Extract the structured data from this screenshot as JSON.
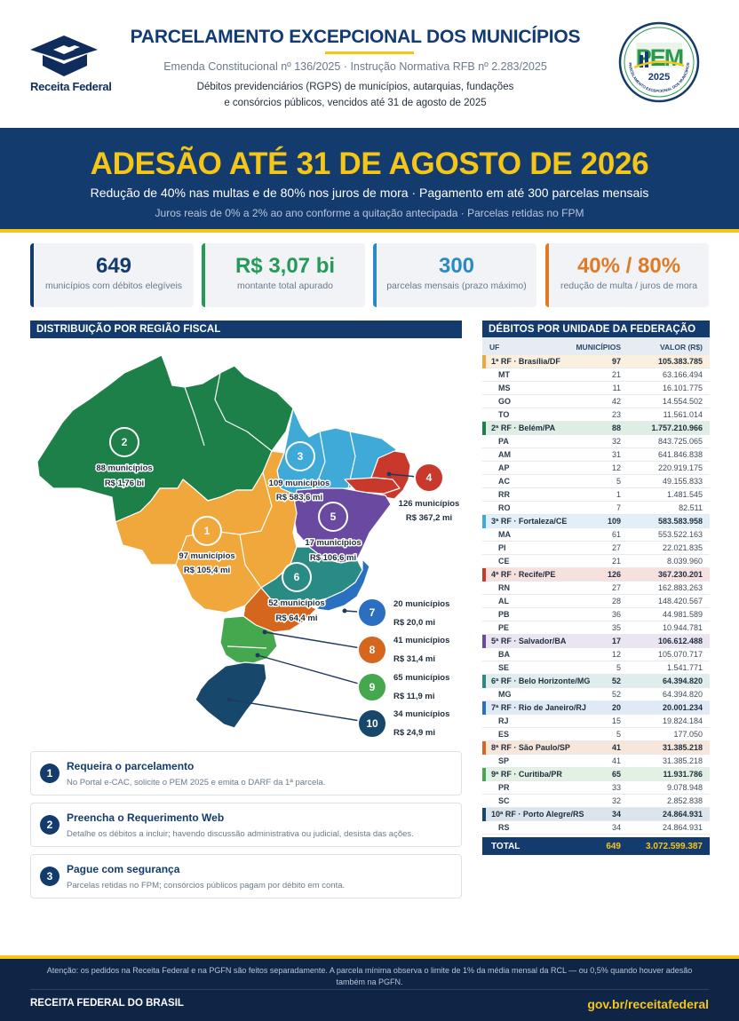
{
  "header": {
    "brand": "Receita Federal",
    "title": "PARCELAMENTO EXCEPCIONAL DOS MUNICÍPIOS",
    "subtitle": "Emenda Constitucional nº 136/2025  ·  Instrução Normativa RFB nº 2.283/2025",
    "description_line1": "Débitos previdenciários (RGPS) de municípios, autarquias, fundações",
    "description_line2": "e consórcios públicos, vencidos até 31 de agosto de 2025",
    "pem_logo": {
      "letters": "PEM",
      "year": "2025",
      "ring_text": "PARCELAMENTO EXCEPCIONAL DOS MUNICÍPIOS"
    }
  },
  "banner": {
    "title": "ADESÃO ATÉ 31 DE AGOSTO DE 2026",
    "subtitle": "Redução de 40% nas multas e de 80% nos juros de mora  ·  Pagamento em até 300 parcelas mensais",
    "note": "Juros reais de 0% a 2% ao ano conforme a quitação antecipada  ·  Parcelas retidas no FPM"
  },
  "kpis": [
    {
      "value": "649",
      "label": "municípios com débitos elegíveis",
      "color": "#133b6e"
    },
    {
      "value": "R$ 3,07 bi",
      "label": "montante total apurado",
      "color": "#239b56"
    },
    {
      "value": "300",
      "label": "parcelas mensais (prazo máximo)",
      "color": "#2a8ac4"
    },
    {
      "value": "40% / 80%",
      "label": "redução de multa / juros de mora",
      "color": "#e07b25"
    }
  ],
  "map": {
    "title": "DISTRIBUIÇÃO POR REGIÃO FISCAL",
    "regions": [
      {
        "num": "1",
        "municipios": "97 municípios",
        "valor": "R$ 105,4 mi",
        "color": "#f0a83c"
      },
      {
        "num": "2",
        "municipios": "88 municípios",
        "valor": "R$ 1,76 bi",
        "color": "#1d8049"
      },
      {
        "num": "3",
        "municipios": "109 municípios",
        "valor": "R$ 583,6 mi",
        "color": "#3fa9d8"
      },
      {
        "num": "4",
        "municipios": "126 municípios",
        "valor": "R$ 367,2 mi",
        "color": "#c9392b"
      },
      {
        "num": "5",
        "municipios": "17 municípios",
        "valor": "R$ 106,6 mi",
        "color": "#6a4aa0"
      },
      {
        "num": "6",
        "municipios": "52 municípios",
        "valor": "R$ 64,4 mi",
        "color": "#2a8a84"
      },
      {
        "num": "7",
        "municipios": "20 municípios",
        "valor": "R$ 20,0 mi",
        "color": "#2a6fc0"
      },
      {
        "num": "8",
        "municipios": "41 municípios",
        "valor": "R$ 31,4 mi",
        "color": "#d4661e"
      },
      {
        "num": "9",
        "municipios": "65 municípios",
        "valor": "R$ 11,9 mi",
        "color": "#46a84e"
      },
      {
        "num": "10",
        "municipios": "34 municípios",
        "valor": "R$ 24,9 mi",
        "color": "#17476b"
      }
    ]
  },
  "steps": [
    {
      "num": "1",
      "title": "Requeira o parcelamento",
      "desc": "No Portal e-CAC, solicite o PEM 2025 e emita o DARF da 1ª parcela."
    },
    {
      "num": "2",
      "title": "Preencha o Requerimento Web",
      "desc": "Detalhe os débitos a incluir; havendo discussão administrativa ou judicial, desista das ações."
    },
    {
      "num": "3",
      "title": "Pague com segurança",
      "desc": "Parcelas retidas no FPM; consórcios públicos pagam por débito em conta."
    }
  ],
  "table": {
    "title": "DÉBITOS POR UNIDADE DA FEDERAÇÃO",
    "columns": [
      "UF",
      "MUNICÍPIOS",
      "VALOR (R$)"
    ],
    "groups": [
      {
        "label": "1ª RF · Brasília/DF",
        "count": "97",
        "value": "105.383.785",
        "color": "#f0a83c",
        "bg": "#fbefde",
        "rows": [
          [
            "MT",
            "21",
            "63.166.494"
          ],
          [
            "MS",
            "11",
            "16.101.775"
          ],
          [
            "GO",
            "42",
            "14.554.502"
          ],
          [
            "TO",
            "23",
            "11.561.014"
          ]
        ]
      },
      {
        "label": "2ª RF · Belém/PA",
        "count": "88",
        "value": "1.757.210.966",
        "color": "#1d8049",
        "bg": "#dfeee4",
        "rows": [
          [
            "PA",
            "32",
            "843.725.065"
          ],
          [
            "AM",
            "31",
            "641.846.838"
          ],
          [
            "AP",
            "12",
            "220.919.175"
          ],
          [
            "AC",
            "5",
            "49.155.833"
          ],
          [
            "RR",
            "1",
            "1.481.545"
          ],
          [
            "RO",
            "7",
            "82.511"
          ]
        ]
      },
      {
        "label": "3ª RF · Fortaleza/CE",
        "count": "109",
        "value": "583.583.958",
        "color": "#3fa9d8",
        "bg": "#e1f0f8",
        "rows": [
          [
            "MA",
            "61",
            "553.522.163"
          ],
          [
            "PI",
            "27",
            "22.021.835"
          ],
          [
            "CE",
            "21",
            "8.039.960"
          ]
        ]
      },
      {
        "label": "4ª RF · Recife/PE",
        "count": "126",
        "value": "367.230.201",
        "color": "#c9392b",
        "bg": "#f6e1df",
        "rows": [
          [
            "RN",
            "27",
            "162.883.263"
          ],
          [
            "AL",
            "28",
            "148.420.567"
          ],
          [
            "PB",
            "36",
            "44.981.589"
          ],
          [
            "PE",
            "35",
            "10.944.781"
          ]
        ]
      },
      {
        "label": "5ª RF · Salvador/BA",
        "count": "17",
        "value": "106.612.488",
        "color": "#6a4aa0",
        "bg": "#ebe5f2",
        "rows": [
          [
            "BA",
            "12",
            "105.070.717"
          ],
          [
            "SE",
            "5",
            "1.541.771"
          ]
        ]
      },
      {
        "label": "6ª RF · Belo Horizonte/MG",
        "count": "52",
        "value": "64.394.820",
        "color": "#2a8a84",
        "bg": "#dfeeed",
        "rows": [
          [
            "MG",
            "52",
            "64.394.820"
          ]
        ]
      },
      {
        "label": "7ª RF · Rio de Janeiro/RJ",
        "count": "20",
        "value": "20.001.234",
        "color": "#2a6fc0",
        "bg": "#e0eaf6",
        "rows": [
          [
            "RJ",
            "15",
            "19.824.184"
          ],
          [
            "ES",
            "5",
            "177.050"
          ]
        ]
      },
      {
        "label": "8ª RF · São Paulo/SP",
        "count": "41",
        "value": "31.385.218",
        "color": "#d4661e",
        "bg": "#f8e6da",
        "rows": [
          [
            "SP",
            "41",
            "31.385.218"
          ]
        ]
      },
      {
        "label": "9ª RF · Curitiba/PR",
        "count": "65",
        "value": "11.931.786",
        "color": "#46a84e",
        "bg": "#e3f1e4",
        "rows": [
          [
            "PR",
            "33",
            "9.078.948"
          ],
          [
            "SC",
            "32",
            "2.852.838"
          ]
        ]
      },
      {
        "label": "10ª RF · Porto Alegre/RS",
        "count": "34",
        "value": "24.864.931",
        "color": "#17476b",
        "bg": "#dde5ec",
        "rows": [
          [
            "RS",
            "34",
            "24.864.931"
          ]
        ]
      }
    ],
    "total": {
      "label": "TOTAL",
      "count": "649",
      "value": "3.072.599.387"
    }
  },
  "footer": {
    "note": "Atenção: os pedidos na Receita Federal e na PGFN são feitos separadamente. A parcela mínima observa o limite de 1% da média mensal da RCL — ou 0,5% quando houver adesão também na PGFN.",
    "left": "RECEITA FEDERAL DO BRASIL",
    "right": "gov.br/receitafederal"
  }
}
